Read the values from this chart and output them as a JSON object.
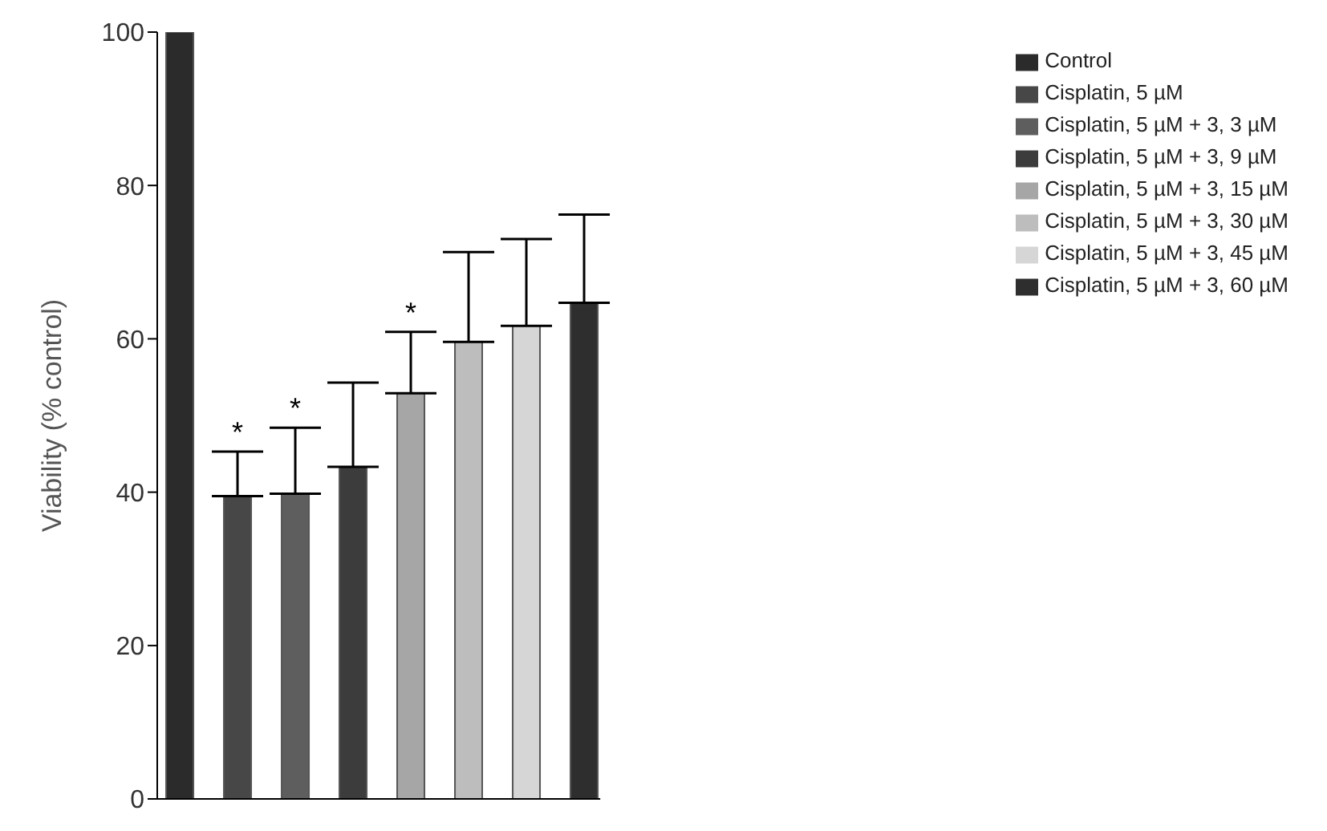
{
  "chart_data": {
    "type": "bar",
    "ylabel": "Viability (% control)",
    "categories": [
      null
    ],
    "ylim": [
      0,
      100
    ],
    "yticks": [
      0,
      20,
      40,
      60,
      80,
      100
    ],
    "legend": "top right",
    "tick_labels": "y",
    "series": [
      {
        "name": "Control",
        "color": "#2b2b2b",
        "values": [
          100
        ],
        "errors": [
          null
        ],
        "value_labels": [
          null
        ]
      },
      {
        "name": "Cisplatin, 5 µM",
        "color": "#474747",
        "values": [
          39.5
        ],
        "errors": [
          [
            39.5,
            45.3
          ]
        ],
        "value_labels": [
          "*"
        ]
      },
      {
        "name": "Cisplatin, 5 µM + 3, 3 µM",
        "color": "#5e5e5e",
        "values": [
          39.8
        ],
        "errors": [
          [
            39.8,
            48.4
          ]
        ],
        "value_labels": [
          "*"
        ]
      },
      {
        "name": "Cisplatin, 5 µM + 3, 9 µM",
        "color": "#3c3c3c",
        "values": [
          43.3
        ],
        "errors": [
          [
            43.3,
            54.3
          ]
        ],
        "value_labels": [
          null
        ]
      },
      {
        "name": "Cisplatin, 5 µM + 3, 15 µM",
        "color": "#a6a6a6",
        "values": [
          52.9
        ],
        "errors": [
          [
            52.9,
            60.9
          ]
        ],
        "value_labels": [
          "*"
        ]
      },
      {
        "name": "Cisplatin, 5 µM + 3, 30 µM",
        "color": "#bdbdbd",
        "values": [
          59.6
        ],
        "errors": [
          [
            59.6,
            71.3
          ]
        ],
        "value_labels": [
          null
        ]
      },
      {
        "name": "Cisplatin, 5 µM + 3, 45 µM",
        "color": "#d6d6d6",
        "values": [
          61.7
        ],
        "errors": [
          [
            61.7,
            73
          ]
        ],
        "value_labels": [
          null
        ]
      },
      {
        "name": "Cisplatin, 5 µM + 3, 60 µM",
        "color": "#2e2e2e",
        "values": [
          64.7
        ],
        "errors": [
          [
            64.7,
            76.2
          ]
        ],
        "value_labels": [
          null
        ]
      }
    ]
  }
}
